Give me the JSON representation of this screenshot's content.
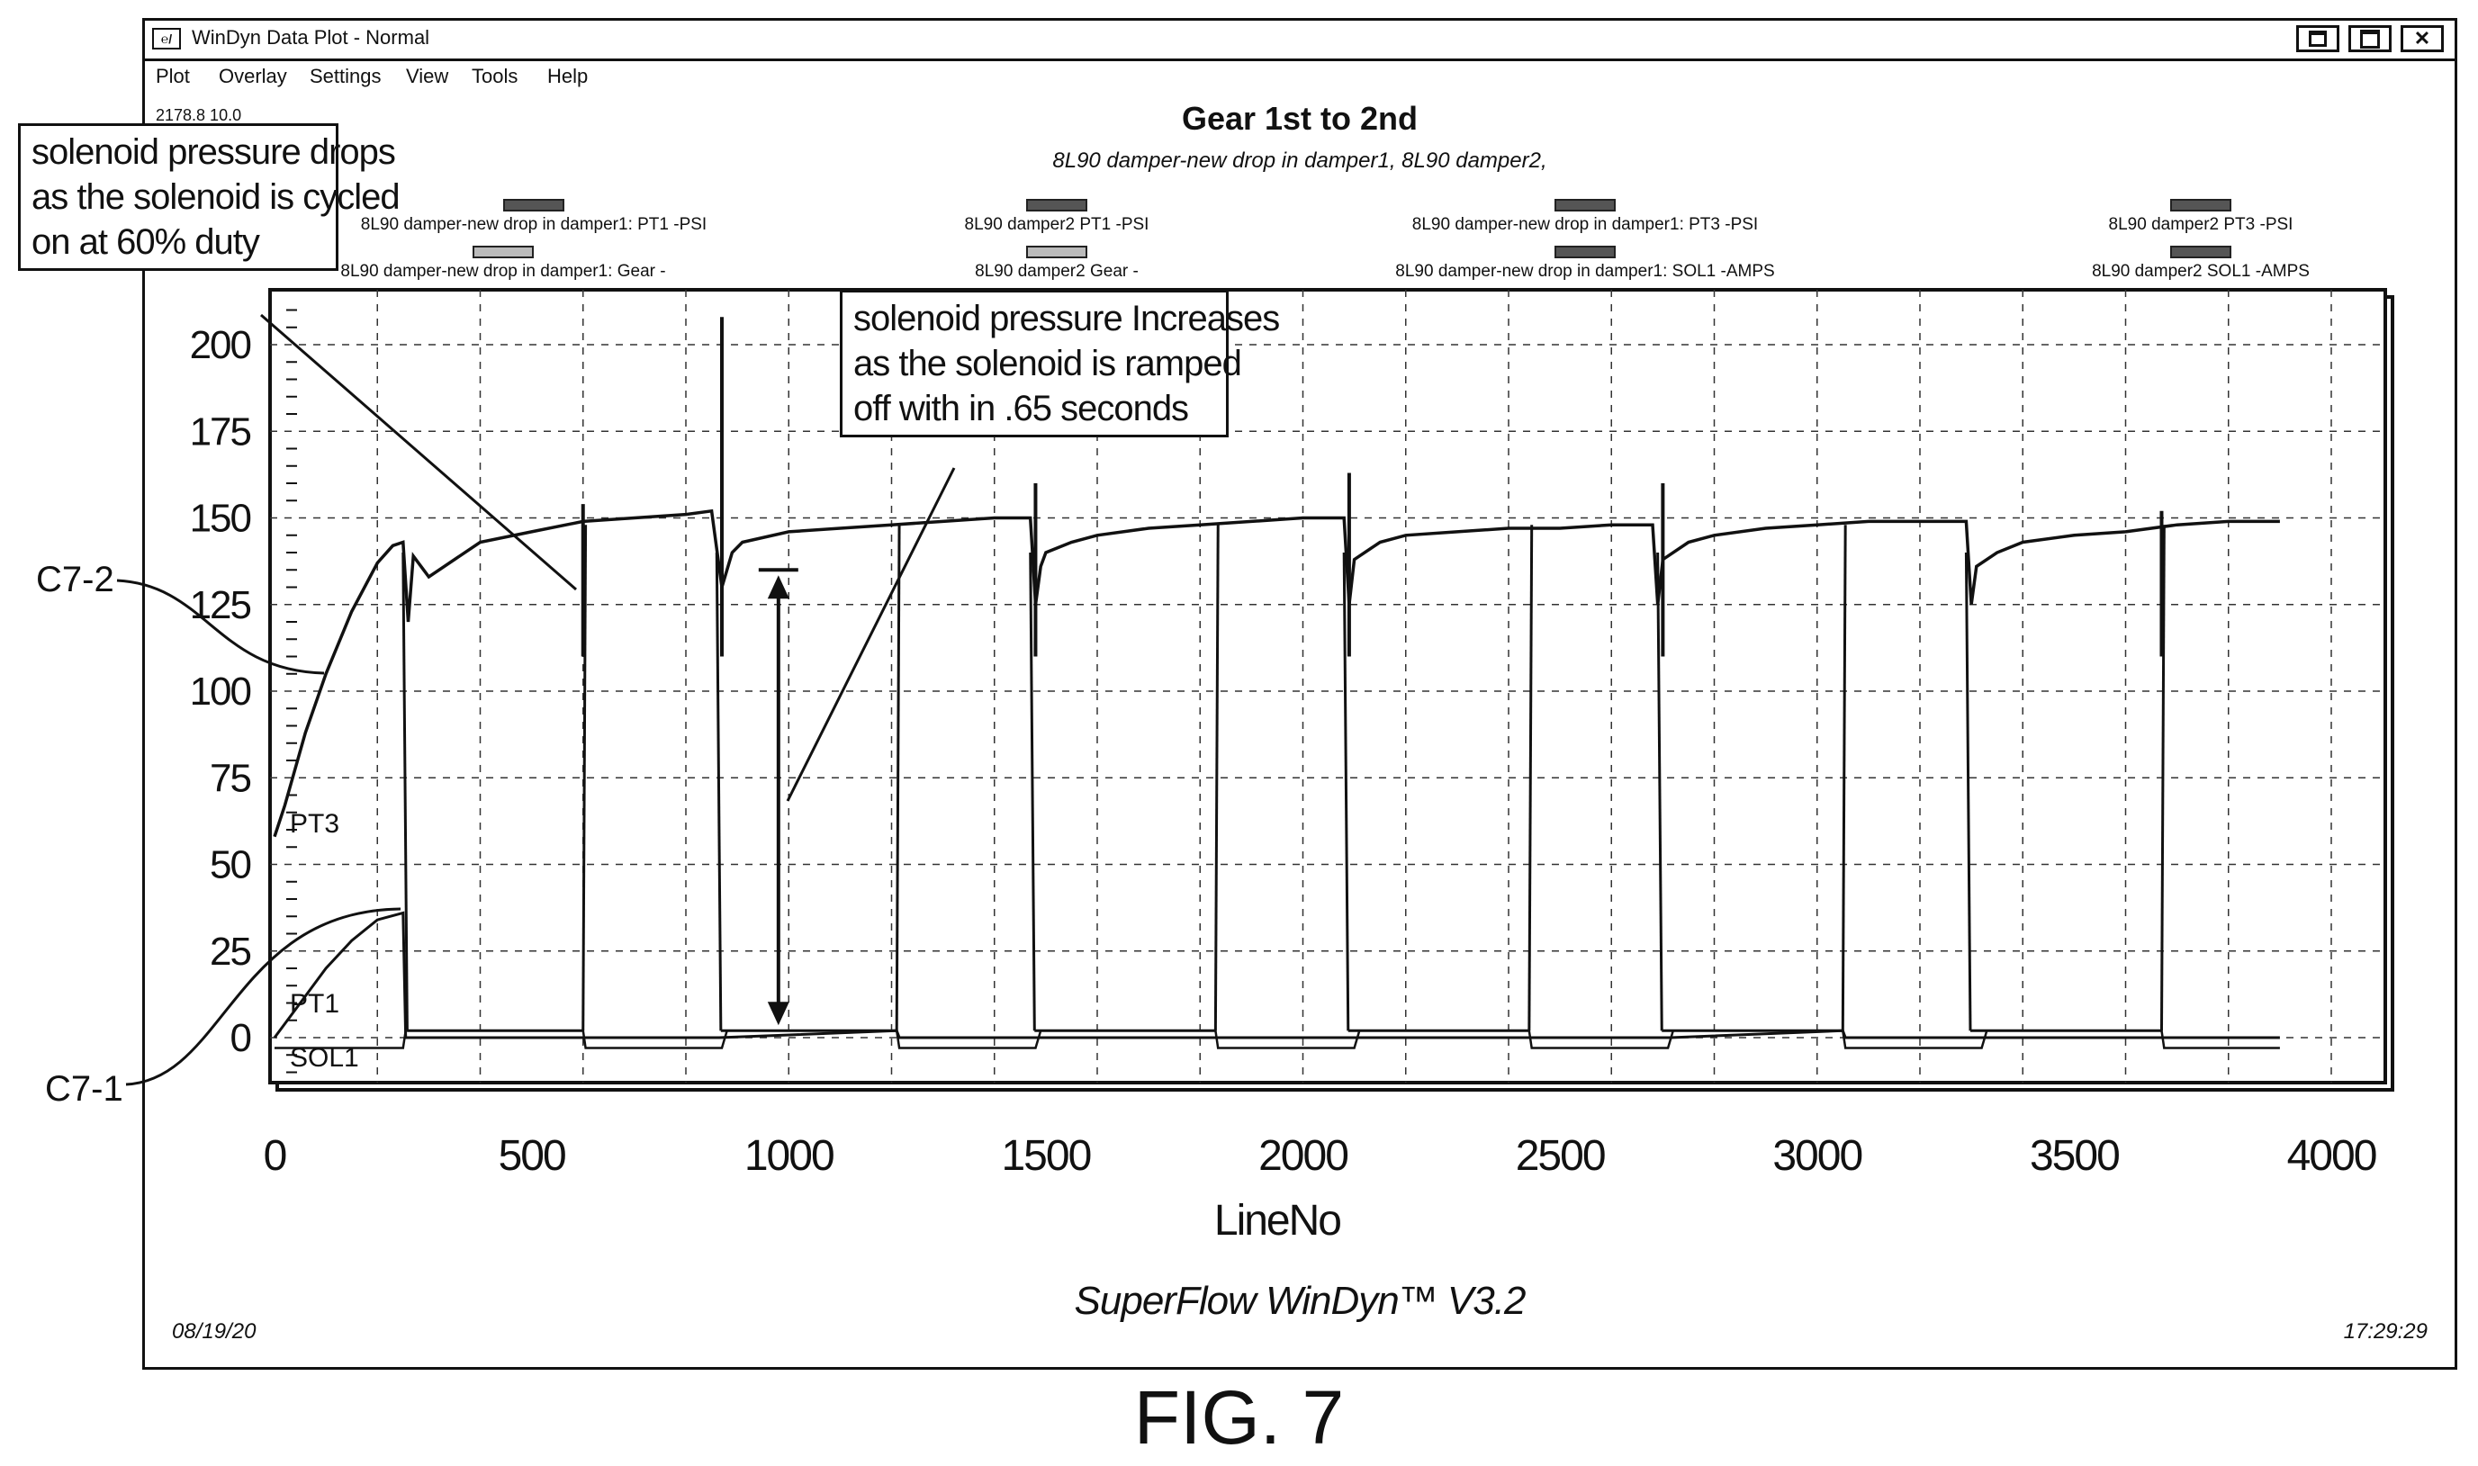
{
  "window": {
    "title": "WinDyn Data Plot - Normal",
    "icon_label": "℮/",
    "controls": [
      "minimize-icon",
      "restore-icon",
      "close-icon"
    ],
    "close_glyph": "✕"
  },
  "menu": [
    "Plot",
    "Overlay",
    "Settings",
    "View",
    "Tools",
    "Help"
  ],
  "coordinate_readout": "2178.8 10.0",
  "chart_data": {
    "type": "line",
    "title": "Gear 1st to 2nd",
    "subtitle": "8L90 damper-new drop in damper1, 8L90 damper2,",
    "xlabel": "LineNo",
    "ylabel": "",
    "xlim": [
      0,
      4100
    ],
    "ylim": [
      -15,
      220
    ],
    "xticks": [
      0,
      500,
      1000,
      1500,
      2000,
      2500,
      3000,
      3500,
      4000
    ],
    "yticks": [
      0,
      25,
      50,
      75,
      100,
      125,
      150,
      175,
      200
    ],
    "grid": true,
    "legend_position": "top",
    "legend": [
      "8L90 damper-new drop in damper1: PT1 -PSI",
      "8L90 damper2 PT1 -PSI",
      "8L90 damper-new drop in damper1: PT3 -PSI",
      "8L90 damper2 PT3 -PSI",
      "8L90 damper-new drop in damper1: Gear -",
      "8L90 damper2 Gear -",
      "8L90 damper-new drop in damper1: SOL1 -AMPS",
      "8L90 damper2 SOL1 -AMPS"
    ],
    "trace_labels": [
      "PT3",
      "PT1",
      "SOL1"
    ],
    "series": [
      {
        "name": "PT3",
        "x": [
          0,
          20,
          60,
          100,
          150,
          200,
          230,
          250,
          260,
          270,
          300,
          400,
          500,
          600,
          700,
          800,
          850,
          870,
          880,
          890,
          910,
          1000,
          1100,
          1200,
          1300,
          1400,
          1470,
          1480,
          1490,
          1500,
          1550,
          1600,
          1700,
          1800,
          1900,
          2000,
          2080,
          2090,
          2100,
          2150,
          2200,
          2300,
          2400,
          2500,
          2600,
          2680,
          2690,
          2700,
          2750,
          2800,
          2900,
          3000,
          3100,
          3200,
          3290,
          3300,
          3310,
          3350,
          3400,
          3500,
          3600,
          3700,
          3800,
          3900
        ],
        "y": [
          58,
          67,
          88,
          105,
          123,
          137,
          142,
          143,
          120,
          139,
          133,
          143,
          146,
          149,
          150,
          151,
          152,
          130,
          135,
          140,
          143,
          146,
          147,
          148,
          149,
          150,
          150,
          125,
          136,
          140,
          143,
          145,
          147,
          148,
          149,
          150,
          150,
          125,
          138,
          143,
          145,
          146,
          147,
          147,
          148,
          148,
          125,
          138,
          143,
          145,
          147,
          148,
          149,
          149,
          149,
          125,
          136,
          140,
          143,
          145,
          146,
          148,
          149,
          149
        ]
      },
      {
        "name": "PT1",
        "x": [
          0,
          50,
          100,
          150,
          200,
          250,
          255,
          600,
          605,
          860,
          865,
          1210,
          1215,
          1480,
          1485,
          1830,
          1835,
          2090,
          2095,
          2440,
          2445,
          2710,
          2715,
          3050,
          3055,
          3320,
          3325,
          3670,
          3675,
          3900
        ],
        "y": [
          0,
          10,
          20,
          28,
          34,
          36,
          0,
          0,
          0,
          0,
          0,
          2,
          0,
          0,
          0,
          0,
          0,
          0,
          0,
          0,
          0,
          0,
          0,
          2,
          0,
          0,
          0,
          0,
          0,
          0
        ]
      },
      {
        "name": "SOL1",
        "x": [
          0,
          200,
          250,
          255,
          600,
          605,
          870,
          880,
          1210,
          1215,
          1480,
          1490,
          1830,
          1835,
          2100,
          2110,
          2440,
          2445,
          2710,
          2720,
          3050,
          3055,
          3320,
          3330,
          3670,
          3675,
          3900
        ],
        "y": [
          -3,
          -3,
          -3,
          2,
          2,
          -3,
          -3,
          2,
          2,
          -3,
          -3,
          2,
          2,
          -3,
          -3,
          2,
          2,
          -3,
          -3,
          2,
          2,
          -3,
          -3,
          2,
          2,
          -3,
          -3
        ]
      }
    ],
    "pressure_cycles": [
      {
        "drop": 250,
        "rise": 600
      },
      {
        "drop": 860,
        "rise": 1210
      },
      {
        "drop": 1470,
        "rise": 1830
      },
      {
        "drop": 2080,
        "rise": 2440
      },
      {
        "drop": 2690,
        "rise": 3050
      },
      {
        "drop": 3290,
        "rise": 3670
      }
    ],
    "spikes": [
      {
        "x": 600,
        "y": 154
      },
      {
        "x": 870,
        "y": 208
      },
      {
        "x": 1480,
        "y": 160
      },
      {
        "x": 2090,
        "y": 163
      },
      {
        "x": 2700,
        "y": 160
      },
      {
        "x": 3670,
        "y": 152
      }
    ],
    "measure_arrow": {
      "x": 980,
      "y_top": 135,
      "y_bottom": 2
    }
  },
  "annotations": {
    "drop_note": [
      "solenoid pressure drops",
      "as the solenoid is cycled",
      "on at 60% duty"
    ],
    "increase_note": [
      "solenoid pressure Increases",
      "as the solenoid is ramped",
      "off with in .65 seconds"
    ]
  },
  "side_labels": {
    "c72": "C7-2",
    "c71": "C7-1"
  },
  "footer": {
    "date": "08/19/20",
    "time": "17:29:29",
    "product": "SuperFlow WinDyn™ V3.2"
  },
  "figure_label": "FIG. 7",
  "colors": {
    "ink": "#111111",
    "swatch_dark": "#555555",
    "swatch_light": "#bbbbbb"
  }
}
